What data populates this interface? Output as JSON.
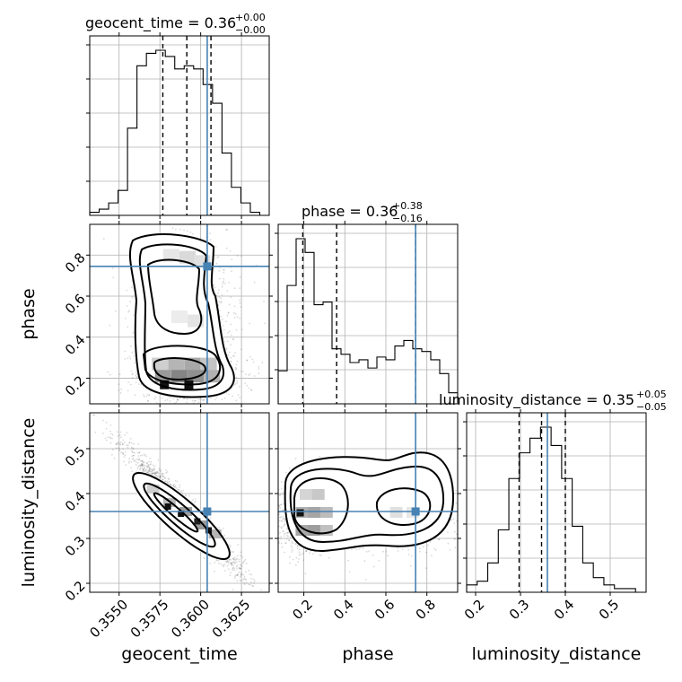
{
  "chart_data": {
    "type": "corner",
    "parameters": [
      "geocent_time",
      "phase",
      "luminosity_distance"
    ],
    "truths": {
      "geocent_time": 0.3604,
      "phase": 0.745,
      "luminosity_distance": 0.36
    },
    "titles": [
      {
        "param": "geocent_time",
        "text": "geocent_time = 0.36",
        "upper": "+0.00",
        "lower": "−0.00"
      },
      {
        "param": "phase",
        "text": "phase = 0.36",
        "upper": "+0.38",
        "lower": "−0.16"
      },
      {
        "param": "luminosity_distance",
        "text": "luminosity_distance = 0.35",
        "upper": "+0.05",
        "lower": "−0.05"
      }
    ],
    "quantiles": {
      "geocent_time": [
        0.35768,
        0.35915,
        0.36063
      ],
      "phase": [
        0.195,
        0.36,
        0.745
      ],
      "luminosity_distance": [
        0.297,
        0.347,
        0.4
      ]
    },
    "ranges": {
      "geocent_time": [
        0.3532,
        0.3642
      ],
      "phase": [
        0.075,
        0.95
      ],
      "luminosity_distance": [
        0.18,
        0.58
      ]
    },
    "ticks": {
      "geocent_time": {
        "values": [
          0.355,
          0.3575,
          0.36,
          0.3625
        ],
        "labels": [
          "0.3550",
          "0.3575",
          "0.3600",
          "0.3625"
        ]
      },
      "phase": {
        "values": [
          0.2,
          0.4,
          0.6,
          0.8
        ],
        "labels": [
          "0.2",
          "0.4",
          "0.6",
          "0.8"
        ]
      },
      "luminosity_distance": {
        "values": [
          0.2,
          0.3,
          0.4,
          0.5
        ],
        "labels": [
          "0.2",
          "0.3",
          "0.4",
          "0.5"
        ]
      }
    },
    "histograms": {
      "geocent_time": [
        1,
        2,
        4,
        8,
        28,
        48,
        52,
        53,
        51,
        47,
        48,
        47,
        42,
        36,
        20,
        9,
        4,
        1,
        0
      ],
      "phase": [
        12,
        43,
        60,
        55,
        36,
        37,
        20,
        18,
        15,
        16,
        13,
        17,
        16,
        21,
        23,
        20,
        19,
        16,
        11,
        4
      ],
      "luminosity_distance": [
        2,
        3,
        8,
        17,
        31,
        38,
        42,
        45,
        40,
        31,
        18,
        8,
        4,
        2,
        1,
        1,
        0
      ]
    },
    "axis_labels": {
      "x": [
        "geocent_time",
        "phase",
        "luminosity_distance"
      ],
      "y": [
        "phase",
        "luminosity_distance"
      ]
    },
    "grid": true
  }
}
